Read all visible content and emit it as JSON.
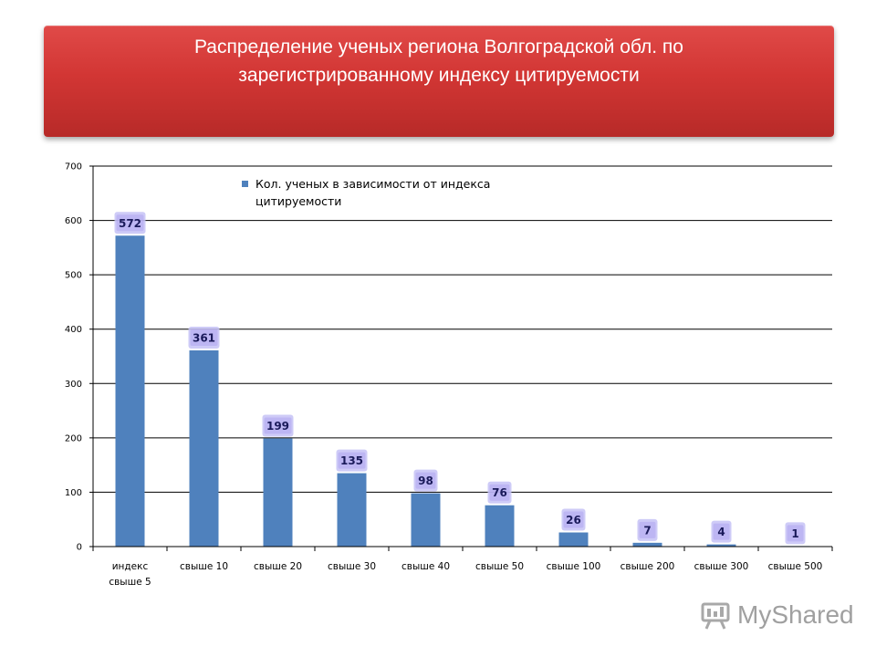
{
  "title": "Распределение ученых региона Волгоградской обл. по зарегистрированному индексу цитируемости",
  "watermark": "MyShared",
  "colors": {
    "bar": "#4f81bd",
    "banner": "#d23634",
    "label_bg": "#c6c2f6"
  },
  "chart_data": {
    "type": "bar",
    "categories": [
      "индекс свыше 5",
      "свыше 10",
      "свыше 20",
      "свыше 30",
      "свыше 40",
      "свыше 50",
      "свыше 100",
      "свыше 200",
      "свыше 300",
      "свыше 500"
    ],
    "series": [
      {
        "name": "Кол. ученых в зависимости от индекса цитируемости",
        "values": [
          572,
          361,
          199,
          135,
          98,
          76,
          26,
          7,
          4,
          1
        ]
      }
    ],
    "ylim": [
      0,
      700
    ],
    "yticks": [
      0,
      100,
      200,
      300,
      400,
      500,
      600,
      700
    ],
    "grid": true,
    "legend": "top-left",
    "data_labels": true
  }
}
